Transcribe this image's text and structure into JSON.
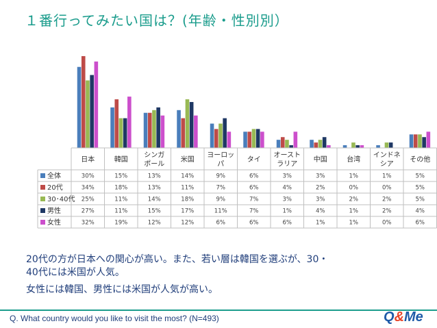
{
  "title": "１番行ってみたい国は？(年齢・性別別）",
  "comments": [
    "20代の方が日本への関心が高い。また、若い層は韓国を選ぶが、30・",
    "40代には米国が人気。",
    "女性には韓国、男性には米国が人気が高い。"
  ],
  "footer": {
    "question": "Q.  What country would you like to visit the most? (N=493)",
    "logo_q": "Q",
    "logo_amp": "&",
    "logo_me": "Me"
  },
  "chart_data": {
    "type": "bar",
    "categories": [
      "日本",
      "韓国",
      "シンガポール",
      "米国",
      "ヨーロッパ",
      "タイ",
      "オーストラリア",
      "中国",
      "台湾",
      "インドネシア",
      "その他"
    ],
    "category_lines": [
      [
        "日本"
      ],
      [
        "韓国"
      ],
      [
        "シンガ",
        "ポール"
      ],
      [
        "米国"
      ],
      [
        "ヨーロッ",
        "パ"
      ],
      [
        "タイ"
      ],
      [
        "オースト",
        "ラリア"
      ],
      [
        "中国"
      ],
      [
        "台湾"
      ],
      [
        "インドネ",
        "シア"
      ],
      [
        "その他"
      ]
    ],
    "series": [
      {
        "name": "全体",
        "color": "#4a7ebb",
        "values": [
          30,
          15,
          13,
          14,
          9,
          6,
          3,
          3,
          1,
          1,
          5
        ],
        "labels": [
          "30%",
          "15%",
          "13%",
          "14%",
          "9%",
          "6%",
          "3%",
          "3%",
          "1%",
          "1%",
          "5%"
        ]
      },
      {
        "name": "20代",
        "color": "#be4b48",
        "values": [
          34,
          18,
          13,
          11,
          7,
          6,
          4,
          2,
          0,
          0,
          5
        ],
        "labels": [
          "34%",
          "18%",
          "13%",
          "11%",
          "7%",
          "6%",
          "4%",
          "2%",
          "0%",
          "0%",
          "5%"
        ]
      },
      {
        "name": "30･40代",
        "color": "#98b954",
        "values": [
          25,
          11,
          14,
          18,
          9,
          7,
          3,
          3,
          2,
          2,
          5
        ],
        "labels": [
          "25%",
          "11%",
          "14%",
          "18%",
          "9%",
          "7%",
          "3%",
          "3%",
          "2%",
          "2%",
          "5%"
        ]
      },
      {
        "name": "男性",
        "color": "#1f3864",
        "values": [
          27,
          11,
          15,
          17,
          11,
          7,
          1,
          4,
          1,
          2,
          4
        ],
        "labels": [
          "27%",
          "11%",
          "15%",
          "17%",
          "11%",
          "7%",
          "1%",
          "4%",
          "1%",
          "2%",
          "4%"
        ]
      },
      {
        "name": "女性",
        "color": "#cc4fcc",
        "values": [
          32,
          19,
          12,
          12,
          6,
          6,
          6,
          1,
          1,
          0,
          6
        ],
        "labels": [
          "32%",
          "19%",
          "12%",
          "12%",
          "6%",
          "6%",
          "6%",
          "1%",
          "1%",
          "0%",
          "6%"
        ]
      }
    ],
    "ylim": [
      0,
      35
    ],
    "grid": false,
    "legend": "table-left"
  }
}
